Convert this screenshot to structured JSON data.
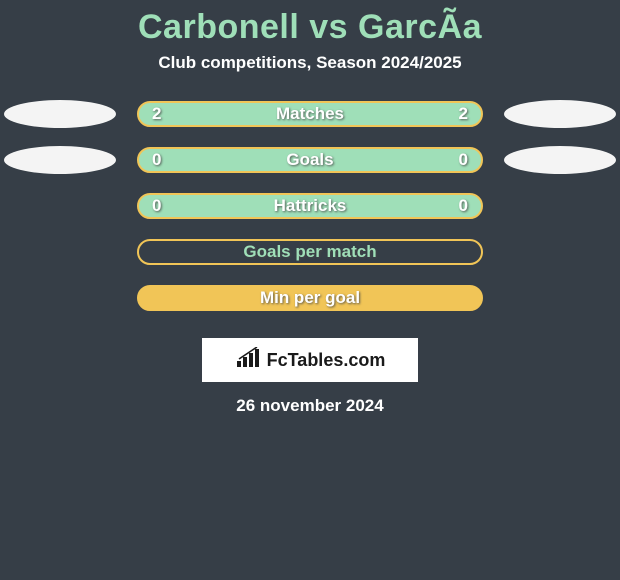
{
  "page": {
    "background_color": "#363e47",
    "text_color": "#e8f3ec"
  },
  "header": {
    "title": "Carbonell vs GarcÃa",
    "title_color": "#9fdfb8",
    "subtitle": "Club competitions, Season 2024/2025",
    "subtitle_color": "#ffffff"
  },
  "stats": [
    {
      "label": "Matches",
      "left_value": "2",
      "right_value": "2",
      "ellipse_left_color": "#f4f4f4",
      "ellipse_right_color": "#f4f4f4",
      "bar_fill": "#9fdfb8",
      "bar_border": "#f1c557",
      "text_color": "#ffffff",
      "show_values": true,
      "show_ellipses": true
    },
    {
      "label": "Goals",
      "left_value": "0",
      "right_value": "0",
      "ellipse_left_color": "#f4f4f4",
      "ellipse_right_color": "#f4f4f4",
      "bar_fill": "#9fdfb8",
      "bar_border": "#f1c557",
      "text_color": "#ffffff",
      "show_values": true,
      "show_ellipses": true
    },
    {
      "label": "Hattricks",
      "left_value": "0",
      "right_value": "0",
      "ellipse_left_color": "",
      "ellipse_right_color": "",
      "bar_fill": "#9fdfb8",
      "bar_border": "#f1c557",
      "text_color": "#ffffff",
      "show_values": true,
      "show_ellipses": false
    },
    {
      "label": "Goals per match",
      "left_value": "",
      "right_value": "",
      "ellipse_left_color": "",
      "ellipse_right_color": "",
      "bar_fill": "#363e47",
      "bar_border": "#f1c557",
      "text_color": "#9fdfb8",
      "show_values": false,
      "show_ellipses": false
    },
    {
      "label": "Min per goal",
      "left_value": "",
      "right_value": "",
      "ellipse_left_color": "",
      "ellipse_right_color": "",
      "bar_fill": "#f1c557",
      "bar_border": "#f1c557",
      "text_color": "#ffffff",
      "show_values": false,
      "show_ellipses": false
    }
  ],
  "footer": {
    "logo_text": "FcTables.com",
    "logo_icon": "chart-icon",
    "date": "26 november 2024",
    "date_color": "#ffffff"
  }
}
